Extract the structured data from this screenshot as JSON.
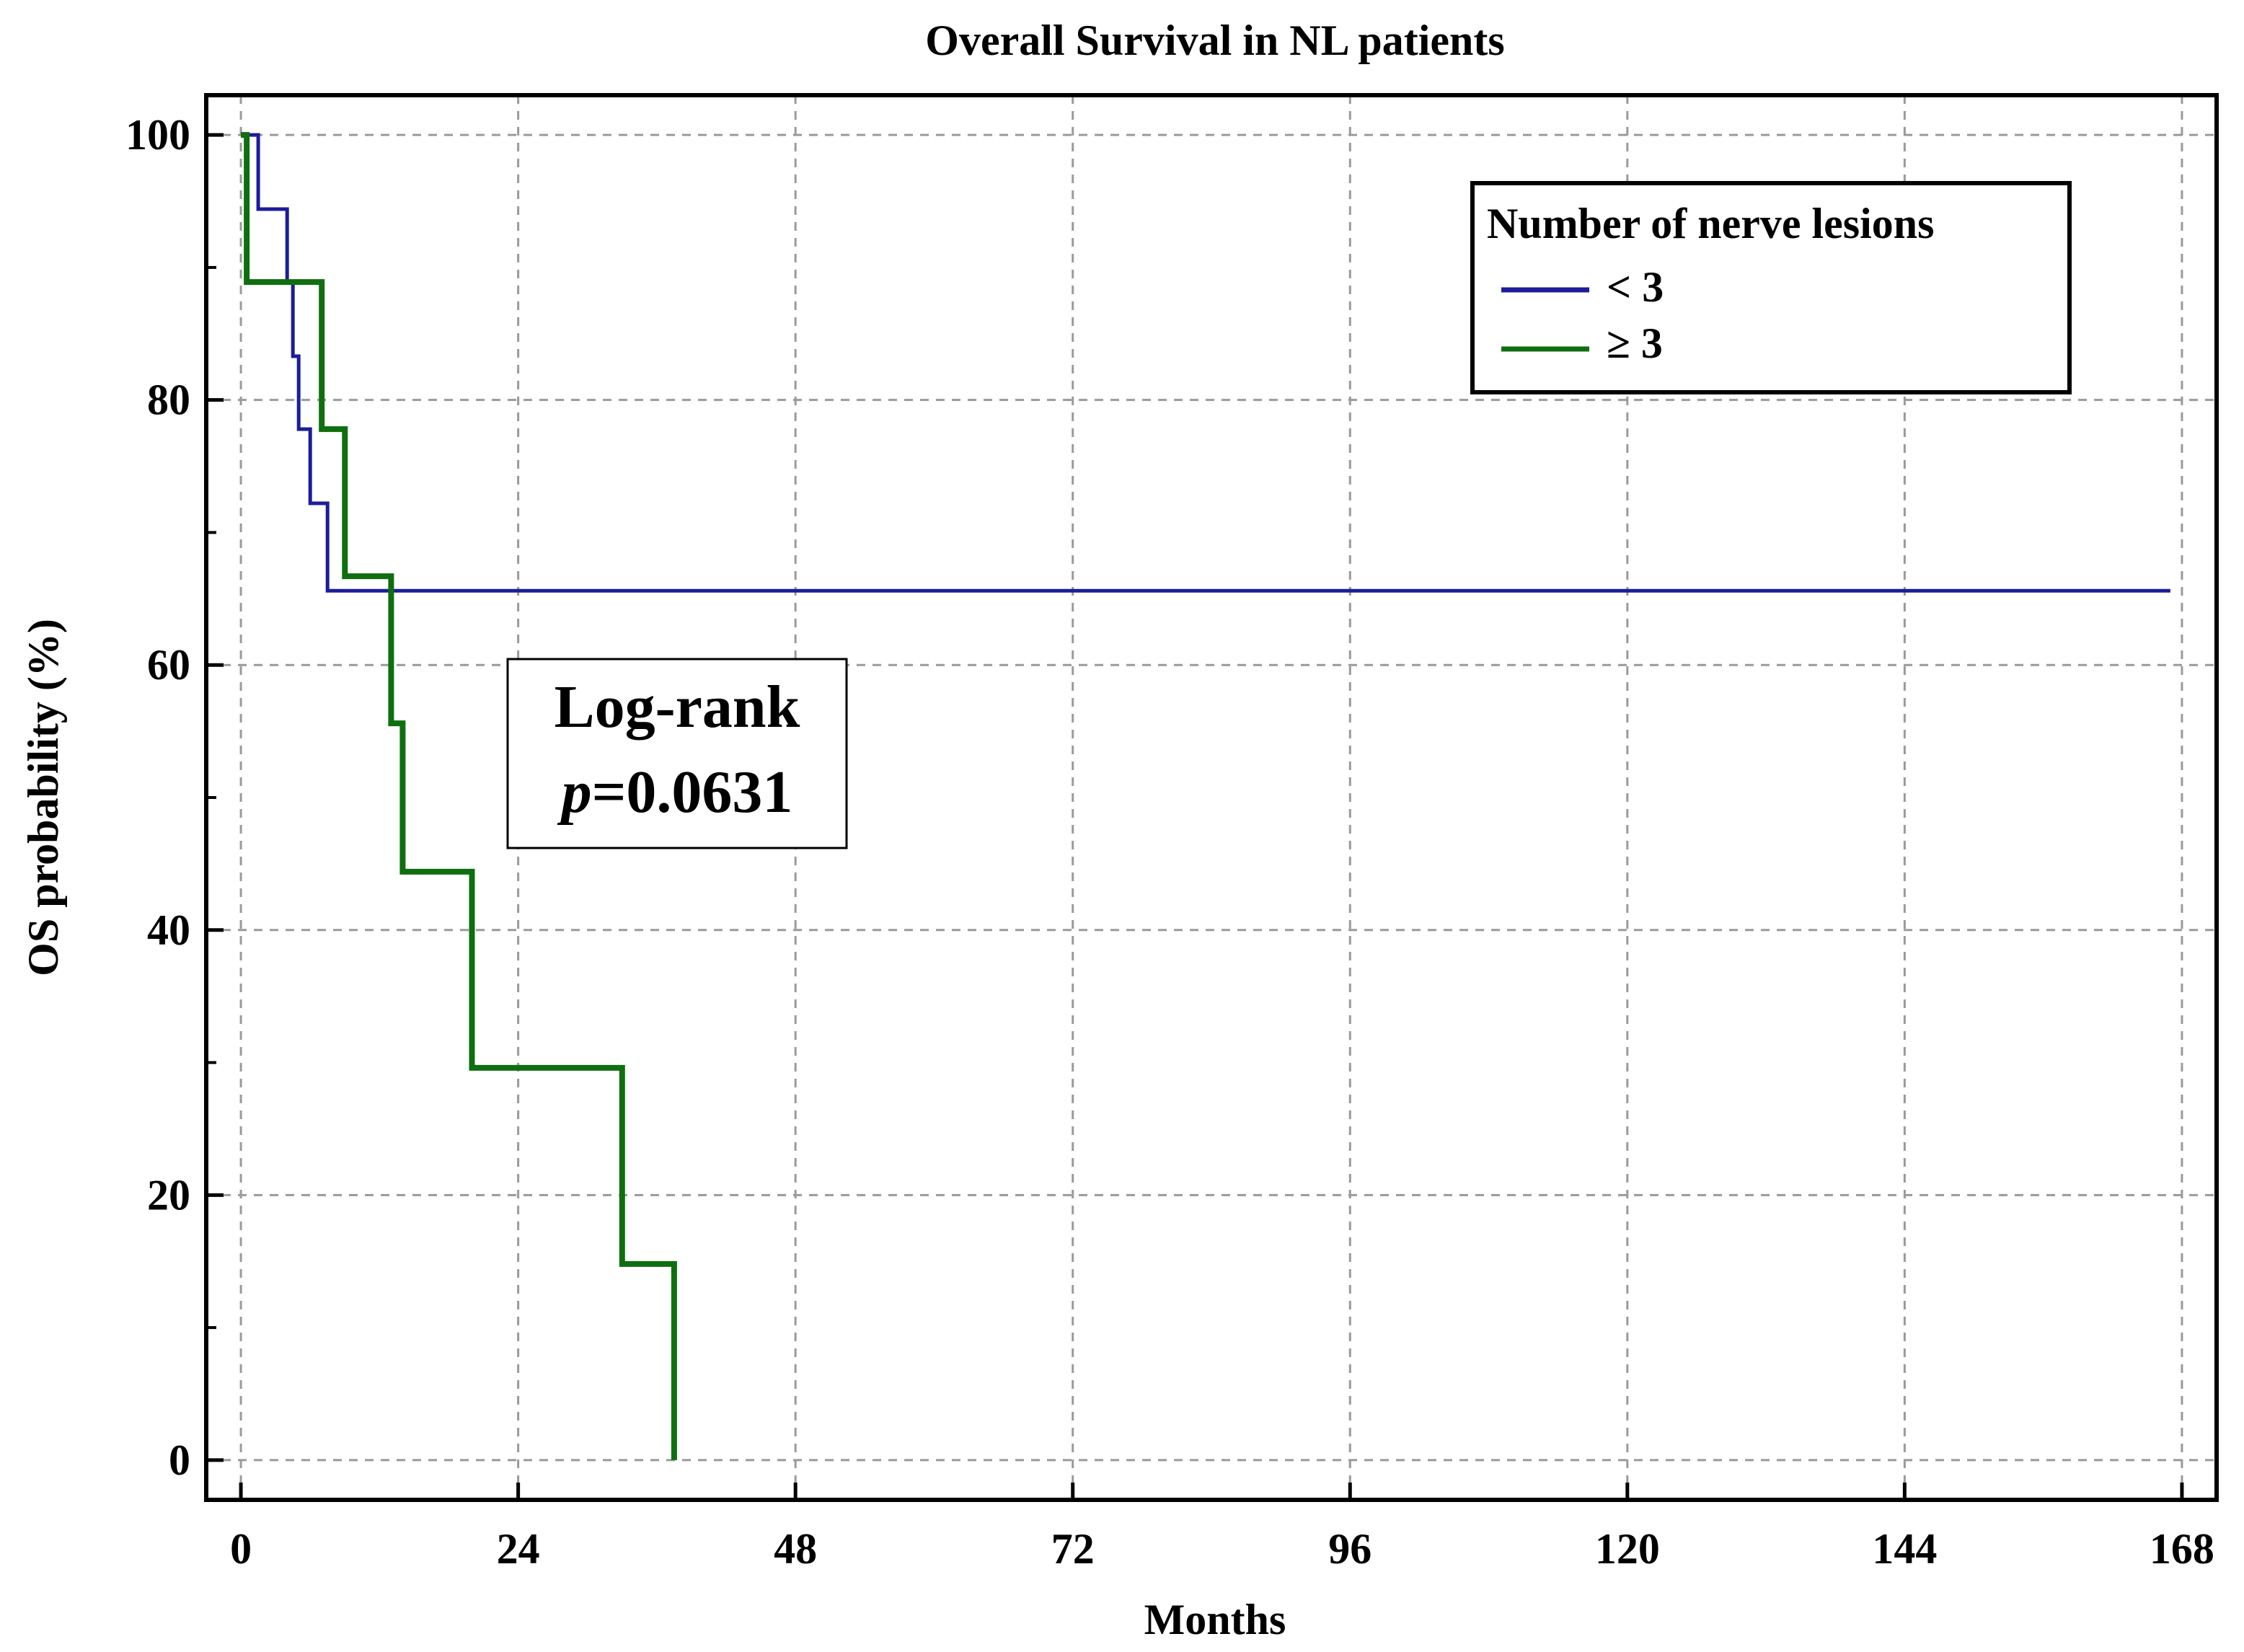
{
  "chart_data": {
    "type": "line",
    "title": "Overall Survival in NL patients",
    "xlabel": "Months",
    "ylabel": "OS probability (%)",
    "xlim": [
      -3,
      171
    ],
    "ylim": [
      -3,
      103
    ],
    "x_ticks": [
      0,
      24,
      48,
      72,
      96,
      120,
      144,
      168
    ],
    "y_ticks": [
      0,
      20,
      40,
      60,
      80,
      100
    ],
    "y_minor_ticks": [
      10,
      30,
      50,
      70,
      90
    ],
    "grid": true,
    "legend": {
      "title": "Number of nerve lesions",
      "position": "top-right"
    },
    "annotation": {
      "line1": "Log-rank",
      "p_symbol": "p",
      "p_value": "=0.0631"
    },
    "series": [
      {
        "name": "< 3",
        "color": "#1c1c9c",
        "steps": [
          [
            0,
            100
          ],
          [
            1.5,
            100
          ],
          [
            1.5,
            94.4
          ],
          [
            4,
            94.4
          ],
          [
            4,
            88.9
          ],
          [
            4.5,
            88.9
          ],
          [
            4.5,
            83.3
          ],
          [
            5,
            83.3
          ],
          [
            5,
            77.8
          ],
          [
            6,
            77.8
          ],
          [
            6,
            72.2
          ],
          [
            7.5,
            72.2
          ],
          [
            7.5,
            65.6
          ],
          [
            167,
            65.6
          ]
        ]
      },
      {
        "name": "≥ 3",
        "color": "#0f6e0f",
        "steps": [
          [
            0,
            100
          ],
          [
            0.5,
            100
          ],
          [
            0.5,
            88.9
          ],
          [
            7,
            88.9
          ],
          [
            7,
            77.8
          ],
          [
            9,
            77.8
          ],
          [
            9,
            66.7
          ],
          [
            13,
            66.7
          ],
          [
            13,
            55.6
          ],
          [
            14,
            55.6
          ],
          [
            14,
            44.4
          ],
          [
            20,
            44.4
          ],
          [
            20,
            29.6
          ],
          [
            33,
            29.6
          ],
          [
            33,
            14.8
          ],
          [
            37.5,
            14.8
          ],
          [
            37.5,
            0
          ]
        ]
      }
    ]
  }
}
